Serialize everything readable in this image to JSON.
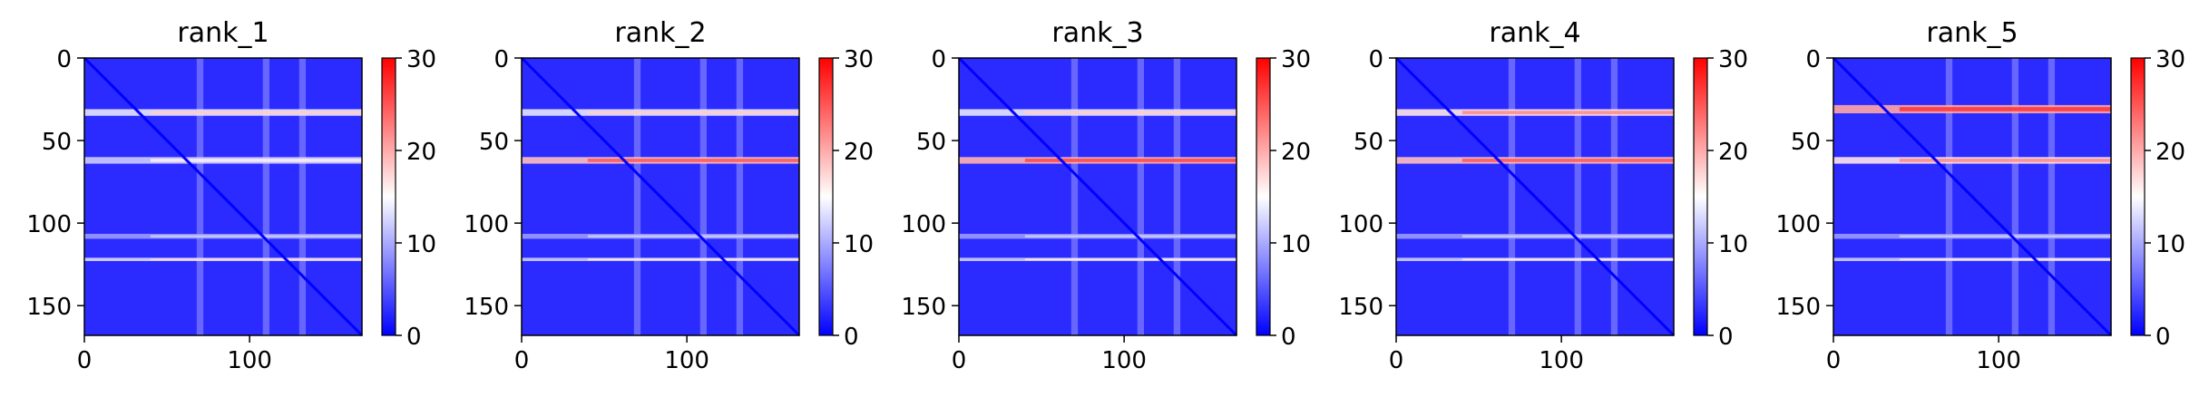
{
  "colorbar": {
    "min": 0,
    "max": 30,
    "ticks": [
      0,
      10,
      20,
      30
    ],
    "cmap": "bwr"
  },
  "chart_data": [
    {
      "type": "heatmap",
      "title": "rank_1",
      "size": 168,
      "xticks": [
        0,
        100
      ],
      "yticks": [
        0,
        50,
        100,
        150
      ],
      "bands": [
        {
          "row": 33,
          "width": 4,
          "value": 18
        },
        {
          "row": 62,
          "width": 4,
          "value": 16
        },
        {
          "row": 108,
          "width": 3,
          "value": 12
        },
        {
          "row": 122,
          "width": 2,
          "value": 17
        }
      ]
    },
    {
      "type": "heatmap",
      "title": "rank_2",
      "size": 168,
      "xticks": [
        0,
        100
      ],
      "yticks": [
        0,
        50,
        100,
        150
      ],
      "bands": [
        {
          "row": 33,
          "width": 4,
          "value": 18
        },
        {
          "row": 62,
          "width": 4,
          "value": 25
        },
        {
          "row": 108,
          "width": 3,
          "value": 12
        },
        {
          "row": 122,
          "width": 2,
          "value": 16
        }
      ]
    },
    {
      "type": "heatmap",
      "title": "rank_3",
      "size": 168,
      "xticks": [
        0,
        100
      ],
      "yticks": [
        0,
        50,
        100,
        150
      ],
      "bands": [
        {
          "row": 33,
          "width": 4,
          "value": 18
        },
        {
          "row": 62,
          "width": 4,
          "value": 26
        },
        {
          "row": 108,
          "width": 3,
          "value": 12
        },
        {
          "row": 122,
          "width": 2,
          "value": 16
        }
      ]
    },
    {
      "type": "heatmap",
      "title": "rank_4",
      "size": 168,
      "xticks": [
        0,
        100
      ],
      "yticks": [
        0,
        50,
        100,
        150
      ],
      "bands": [
        {
          "row": 33,
          "width": 4,
          "value": 22
        },
        {
          "row": 62,
          "width": 4,
          "value": 25
        },
        {
          "row": 108,
          "width": 3,
          "value": 12
        },
        {
          "row": 122,
          "width": 2,
          "value": 16
        }
      ]
    },
    {
      "type": "heatmap",
      "title": "rank_5",
      "size": 168,
      "xticks": [
        0,
        100
      ],
      "yticks": [
        0,
        50,
        100,
        150
      ],
      "bands": [
        {
          "row": 31,
          "width": 5,
          "value": 27
        },
        {
          "row": 62,
          "width": 4,
          "value": 22
        },
        {
          "row": 108,
          "width": 3,
          "value": 12
        },
        {
          "row": 122,
          "width": 2,
          "value": 16
        }
      ]
    }
  ]
}
